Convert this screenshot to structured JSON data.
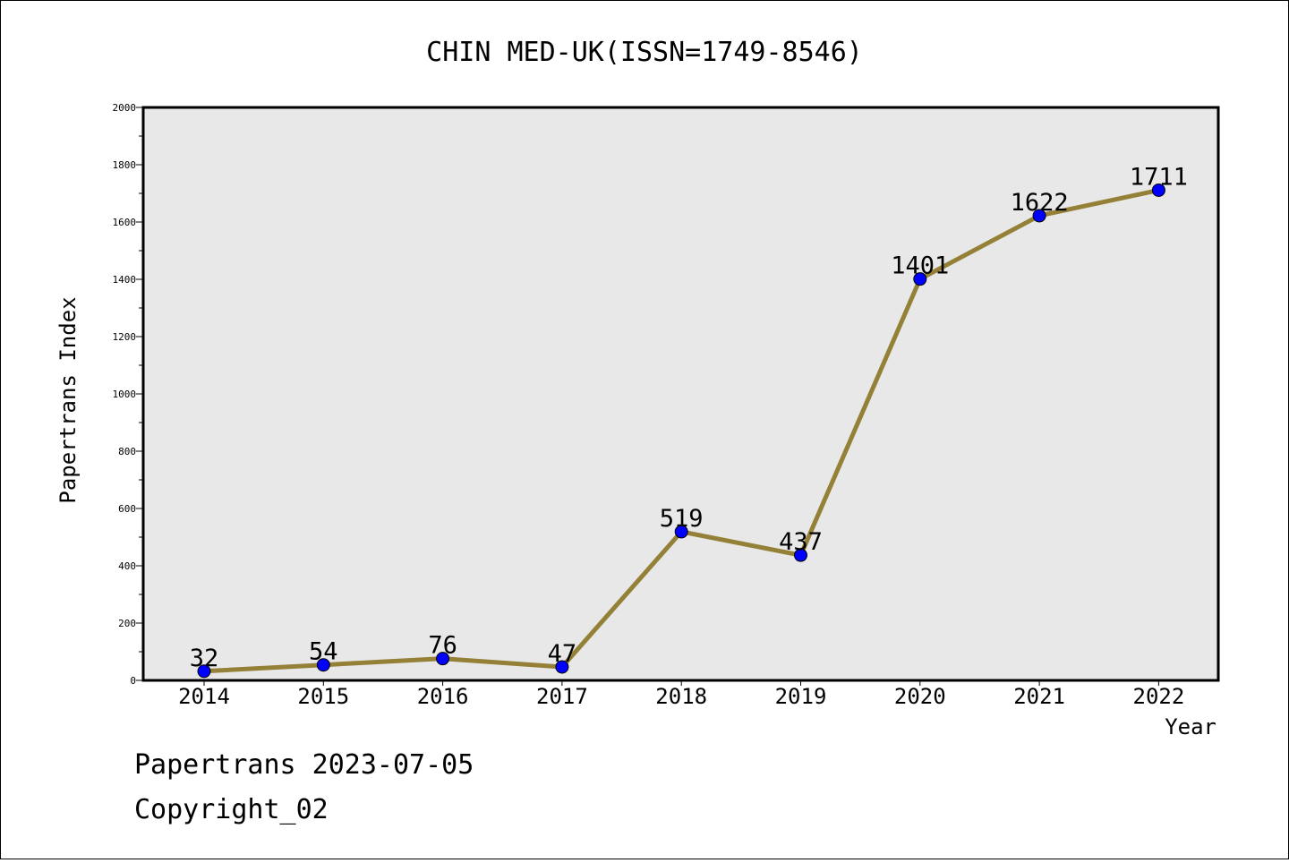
{
  "chart_data": {
    "type": "line",
    "title": "CHIN MED-UK(ISSN=1749-8546)",
    "xlabel": "Year",
    "ylabel": "Papertrans Index",
    "ylim": [
      0,
      2000
    ],
    "yticks": [
      0,
      200,
      400,
      600,
      800,
      1000,
      1200,
      1400,
      1600,
      1800,
      2000
    ],
    "x": [
      "2014",
      "2015",
      "2016",
      "2017",
      "2018",
      "2019",
      "2020",
      "2021",
      "2022"
    ],
    "series": [
      {
        "values": [
          32,
          54,
          76,
          47,
          519,
          437,
          1401,
          1622,
          1711
        ],
        "line_color": "#948037",
        "marker_color": "#0000ff"
      }
    ],
    "data_labels": [
      "32",
      "54",
      "76",
      "47",
      "519",
      "437",
      "1401",
      "1622",
      "1711"
    ],
    "grid": false,
    "plot_background": "#e8e8e8"
  },
  "footer": {
    "line1": "Papertrans 2023-07-05",
    "line2": "Copyright_02"
  }
}
